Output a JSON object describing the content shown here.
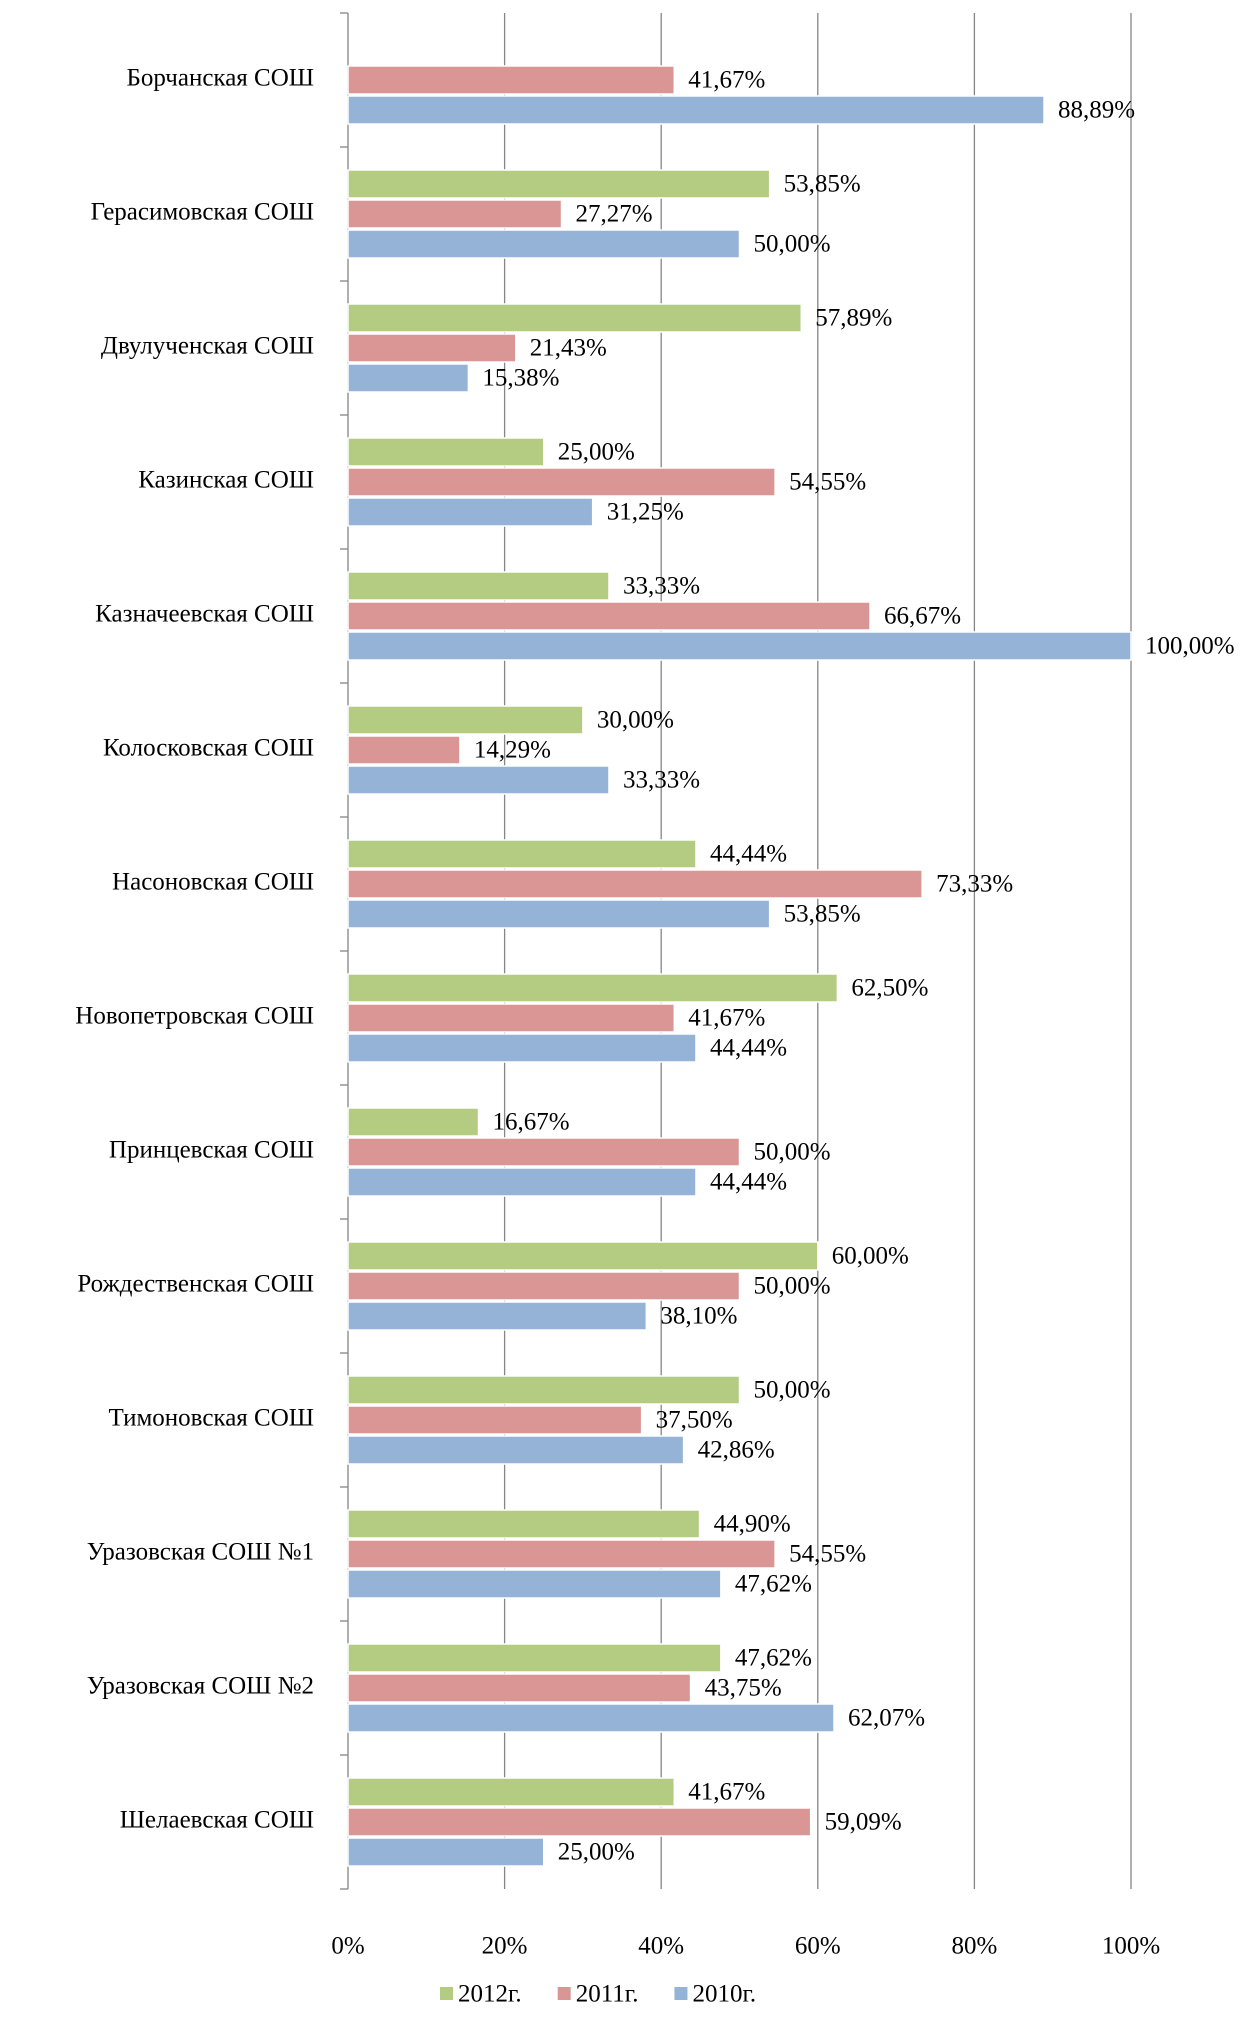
{
  "chart_data": {
    "type": "hbar",
    "categories": [
      "Борчанская СОШ",
      "Герасимовская СОШ",
      "Двулученская СОШ",
      "Казинская СОШ",
      "Казначеевская СОШ",
      "Колосковская СОШ",
      "Насоновская СОШ",
      "Новопетровская СОШ",
      "Принцевская СОШ",
      "Рождественская СОШ",
      "Тимоновская СОШ",
      "Уразовская СОШ №1",
      "Уразовская СОШ №2",
      "Шелаевская СОШ"
    ],
    "series": [
      {
        "name": "2012г.",
        "color": "#b3cc82",
        "values": [
          null,
          53.85,
          57.89,
          25.0,
          33.33,
          30.0,
          44.44,
          62.5,
          16.67,
          60.0,
          50.0,
          44.9,
          47.62,
          41.67
        ],
        "value_labels": [
          null,
          "53,85%",
          "57,89%",
          "25,00%",
          "33,33%",
          "30,00%",
          "44,44%",
          "62,50%",
          "16,67%",
          "60,00%",
          "50,00%",
          "44,90%",
          "47,62%",
          "41,67%"
        ]
      },
      {
        "name": "2011г.",
        "color": "#d99694",
        "values": [
          41.67,
          27.27,
          21.43,
          54.55,
          66.67,
          14.29,
          73.33,
          41.67,
          50.0,
          50.0,
          37.5,
          54.55,
          43.75,
          59.09
        ],
        "value_labels": [
          "41,67%",
          "27,27%",
          "21,43%",
          "54,55%",
          "66,67%",
          "14,29%",
          "73,33%",
          "41,67%",
          "50,00%",
          "50,00%",
          "37,50%",
          "54,55%",
          "43,75%",
          "59,09%"
        ]
      },
      {
        "name": "2010г.",
        "color": "#95b3d7",
        "values": [
          88.89,
          50.0,
          15.38,
          31.25,
          100.0,
          33.33,
          53.85,
          44.44,
          44.44,
          38.1,
          42.86,
          47.62,
          62.07,
          25.0
        ],
        "value_labels": [
          "88,89%",
          "50,00%",
          "15,38%",
          "31,25%",
          "100,00%",
          "33,33%",
          "53,85%",
          "44,44%",
          "44,44%",
          "38,10%",
          "42,86%",
          "47,62%",
          "62,07%",
          "25,00%"
        ]
      }
    ],
    "xlim": [
      0,
      100
    ],
    "xticks": [
      {
        "value": 0,
        "label": "0%"
      },
      {
        "value": 20,
        "label": "20%"
      },
      {
        "value": 40,
        "label": "40%"
      },
      {
        "value": 60,
        "label": "60%"
      },
      {
        "value": 80,
        "label": "80%"
      },
      {
        "value": 100,
        "label": "100%"
      }
    ],
    "grid": true,
    "legend": "bottom"
  }
}
